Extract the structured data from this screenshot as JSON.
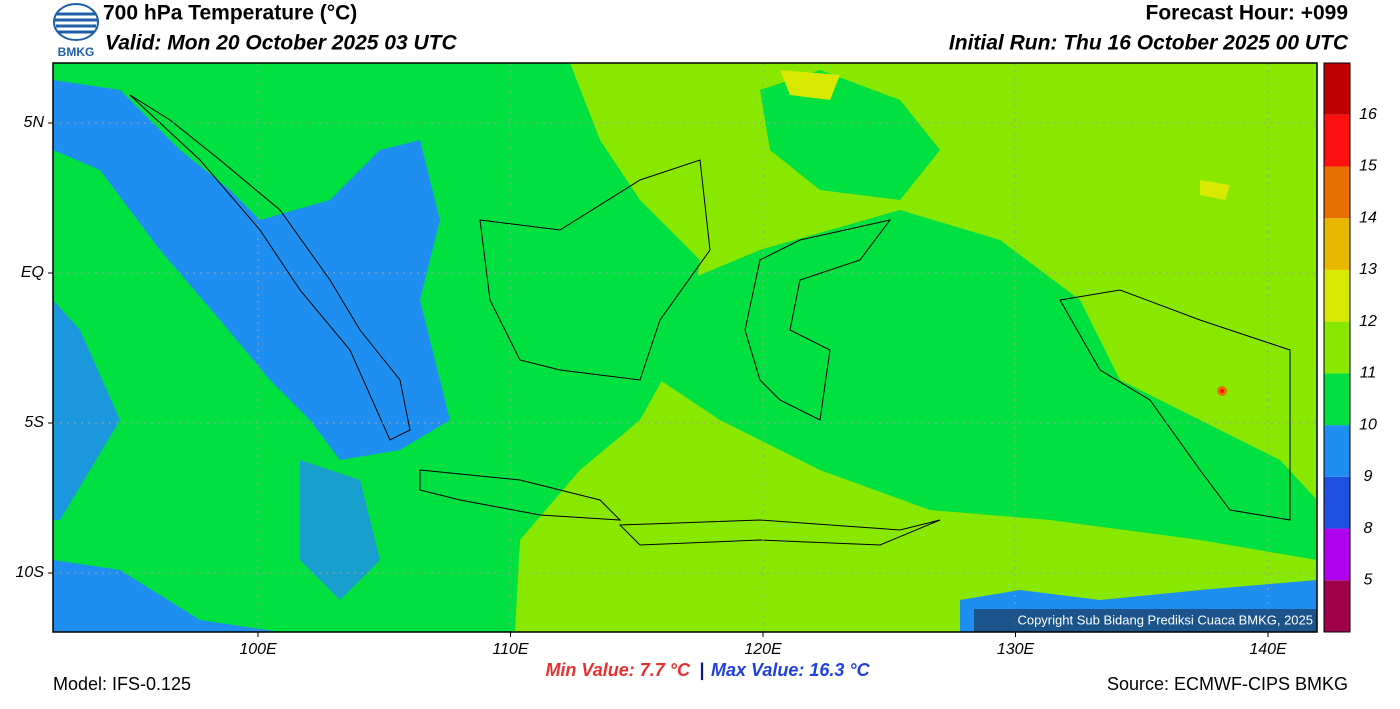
{
  "header": {
    "title": "700 hPa Temperature (°C)",
    "valid": "Valid: Mon 20 October 2025 03 UTC",
    "forecast_hour": "Forecast Hour: +099",
    "initial_run": "Initial Run: Thu 16 October 2025 00 UTC",
    "logo_text": "BMKG"
  },
  "map": {
    "lat_labels": [
      "5N",
      "EQ",
      "5S",
      "10S"
    ],
    "lon_labels": [
      "100E",
      "110E",
      "120E",
      "130E",
      "140E"
    ],
    "copyright": "Copyright Sub Bidang Prediksi Cuaca BMKG, 2025"
  },
  "colorbar": {
    "labels": [
      "5",
      "8",
      "9",
      "10",
      "11",
      "12",
      "13",
      "14",
      "15",
      "16"
    ],
    "colors": [
      "#a0004a",
      "#b000f0",
      "#2050e0",
      "#1e8ff0",
      "#00e040",
      "#88e800",
      "#d8e800",
      "#e8b800",
      "#e87000",
      "#ff1010",
      "#c00000"
    ]
  },
  "footer": {
    "min_value": "Min Value: 7.7 °C",
    "separator": "|",
    "max_value": "Max Value: 16.3 °C",
    "model": "Model: IFS-0.125",
    "source": "Source: ECMWF-CIPS BMKG"
  }
}
